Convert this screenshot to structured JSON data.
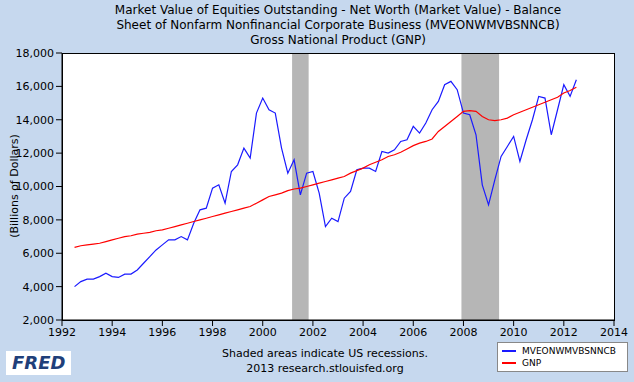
{
  "chart_data": {
    "type": "line",
    "title": [
      "Market Value of Equities Outstanding - Net Worth (Market Value) - Balance",
      "Sheet of Nonfarm Nonfinancial Corporate Business (MVEONWMVBSNNCB)",
      "Gross National Product (GNP)"
    ],
    "y_label": "(Billions of Dollars)",
    "annotations": [
      "Shaded areas indicate US recessions.",
      "2013 research.stlouisfed.org"
    ],
    "logo": "FRED",
    "x": [
      1992.5,
      1992.75,
      1993,
      1993.25,
      1993.5,
      1993.75,
      1994,
      1994.25,
      1994.5,
      1994.75,
      1995,
      1995.25,
      1995.5,
      1995.75,
      1996,
      1996.25,
      1996.5,
      1996.75,
      1997,
      1997.25,
      1997.5,
      1997.75,
      1998,
      1998.25,
      1998.5,
      1998.75,
      1999,
      1999.25,
      1999.5,
      1999.75,
      2000,
      2000.25,
      2000.5,
      2000.75,
      2001,
      2001.25,
      2001.5,
      2001.75,
      2002,
      2002.25,
      2002.5,
      2002.75,
      2003,
      2003.25,
      2003.5,
      2003.75,
      2004,
      2004.25,
      2004.5,
      2004.75,
      2005,
      2005.25,
      2005.5,
      2005.75,
      2006,
      2006.25,
      2006.5,
      2006.75,
      2007,
      2007.25,
      2007.5,
      2007.75,
      2008,
      2008.25,
      2008.5,
      2008.75,
      2009,
      2009.25,
      2009.5,
      2009.75,
      2010,
      2010.25,
      2010.5,
      2010.75,
      2011,
      2011.25,
      2011.5,
      2011.75,
      2012,
      2012.25,
      2012.5
    ],
    "series": [
      {
        "name": "MVEONWMVBSNNCB",
        "color": "#1a1aff",
        "values": [
          4000,
          4300,
          4450,
          4450,
          4600,
          4800,
          4600,
          4550,
          4750,
          4750,
          5000,
          5400,
          5800,
          6200,
          6500,
          6800,
          6800,
          7000,
          6800,
          7800,
          8600,
          8700,
          9900,
          10100,
          9000,
          10900,
          11300,
          12300,
          11700,
          14400,
          15300,
          14600,
          14400,
          12300,
          10800,
          11600,
          9500,
          10800,
          10900,
          9600,
          7600,
          8100,
          7900,
          9300,
          9700,
          11000,
          11100,
          11100,
          10900,
          12100,
          12000,
          12200,
          12700,
          12800,
          13600,
          13200,
          13800,
          14600,
          15100,
          16100,
          16300,
          15800,
          14400,
          14300,
          13100,
          10100,
          8900,
          10400,
          11800,
          12400,
          13000,
          11500,
          12800,
          14000,
          15400,
          15300,
          13100,
          14600,
          16100,
          15400,
          16400
        ]
      },
      {
        "name": "GNP",
        "color": "#ff0000",
        "values": [
          6350,
          6450,
          6500,
          6550,
          6600,
          6700,
          6800,
          6900,
          7000,
          7050,
          7150,
          7200,
          7250,
          7350,
          7400,
          7500,
          7600,
          7700,
          7800,
          7900,
          8000,
          8100,
          8200,
          8300,
          8400,
          8500,
          8600,
          8700,
          8800,
          9000,
          9200,
          9400,
          9500,
          9600,
          9750,
          9850,
          9900,
          10000,
          10100,
          10200,
          10300,
          10400,
          10500,
          10600,
          10800,
          10950,
          11100,
          11300,
          11450,
          11600,
          11800,
          11900,
          12050,
          12250,
          12450,
          12600,
          12700,
          12850,
          13300,
          13600,
          13900,
          14200,
          14500,
          14550,
          14500,
          14200,
          14000,
          13950,
          14000,
          14100,
          14300,
          14450,
          14600,
          14750,
          14900,
          15050,
          15200,
          15350,
          15600,
          15750,
          15950
        ]
      }
    ],
    "recessions": [
      [
        2001.17,
        2001.83
      ],
      [
        2007.92,
        2009.42
      ]
    ],
    "xlim": [
      1992,
      2014
    ],
    "xticks": [
      1992,
      1994,
      1996,
      1998,
      2000,
      2002,
      2004,
      2006,
      2008,
      2010,
      2012,
      2014
    ],
    "ylim": [
      2000,
      18000
    ],
    "yticks": [
      {
        "value": 2000,
        "label": "2,000"
      },
      {
        "value": 4000,
        "label": "4,000"
      },
      {
        "value": 6000,
        "label": "6,000"
      },
      {
        "value": 8000,
        "label": "8,000"
      },
      {
        "value": 10000,
        "label": "10,000"
      },
      {
        "value": 12000,
        "label": "12,000"
      },
      {
        "value": 14000,
        "label": "14,000"
      },
      {
        "value": 16000,
        "label": "16,000"
      },
      {
        "value": 18000,
        "label": "18,000"
      }
    ],
    "grid": false,
    "legend": "lower right"
  }
}
